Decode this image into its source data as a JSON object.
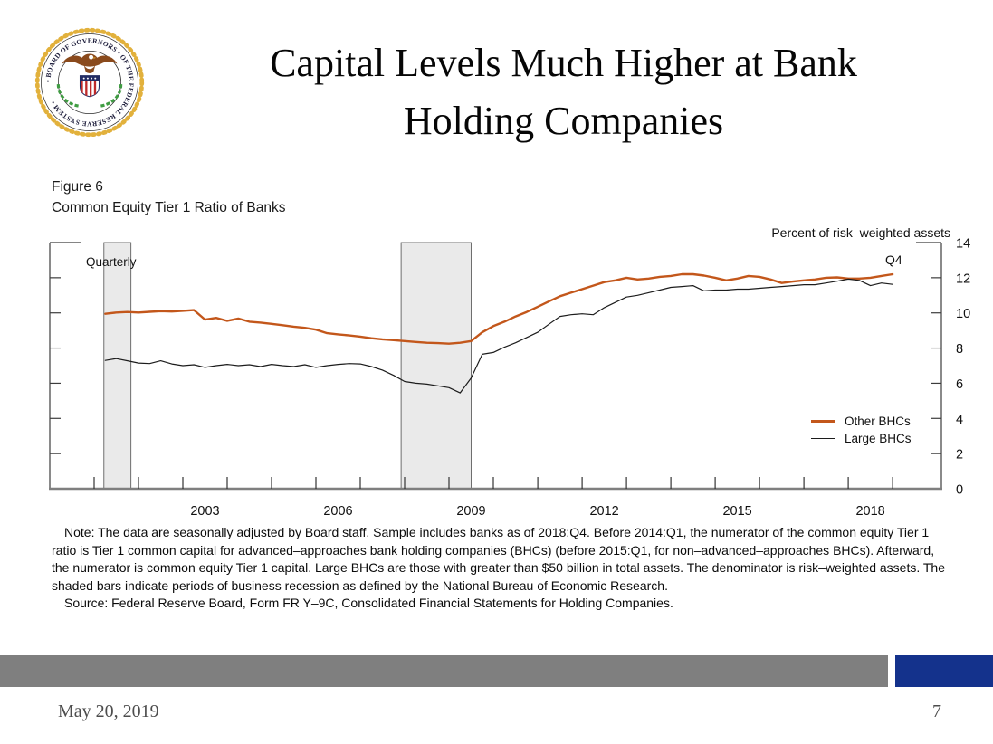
{
  "slide": {
    "title_line1": "Capital Levels Much Higher at Bank",
    "title_line2": "Holding Companies",
    "footer_date": "May 20, 2019",
    "page_number": "7"
  },
  "logo": {
    "ring_text": "• BOARD OF GOVERNORS • OF THE FEDERAL RESERVE SYSTEM •"
  },
  "figure": {
    "label": "Figure 6",
    "subtitle": "Common Equity Tier 1 Ratio of Banks",
    "note": "Note: The data are seasonally adjusted by Board staff. Sample includes banks as of 2018:Q4. Before 2014:Q1, the numerator of the common equity Tier 1 ratio is Tier 1 common capital for advanced–approaches bank holding companies (BHCs) (before 2015:Q1, for non–advanced–approaches BHCs). Afterward, the numerator is common equity Tier 1 capital. Large BHCs are those with greater than $50 billion in total assets. The denominator is risk–weighted assets. The shaded bars indicate periods of business recession as defined by the National Bureau of Economic Research.",
    "source": "Source: Federal Reserve Board, Form FR Y–9C, Consolidated Financial Statements for Holding Companies."
  },
  "chart_data": {
    "type": "line",
    "title": "Common Equity Tier 1 Ratio of Banks",
    "ylabel": "Percent of risk–weighted assets",
    "frequency_label": "Quarterly",
    "end_label": "Q4",
    "ylim": [
      0,
      14
    ],
    "yticks": [
      0,
      2,
      4,
      6,
      8,
      10,
      12,
      14
    ],
    "xlim": [
      2000,
      2020.1
    ],
    "xticks_years": [
      2001,
      2002,
      2003,
      2004,
      2005,
      2006,
      2007,
      2008,
      2009,
      2010,
      2011,
      2012,
      2013,
      2014,
      2015,
      2016,
      2017,
      2018,
      2019
    ],
    "xtick_labels": [
      2003,
      2006,
      2009,
      2012,
      2015,
      2018
    ],
    "grid": false,
    "legend_position": "right-middle",
    "x_start": 2001.25,
    "x_step": 0.25,
    "recessions": [
      [
        2001.22,
        2001.83
      ],
      [
        2007.92,
        2009.5
      ]
    ],
    "series": [
      {
        "name": "Other BHCs",
        "color": "#C3571B",
        "width": 2.4,
        "values": [
          9.95,
          10.02,
          10.05,
          10.02,
          10.06,
          10.1,
          10.08,
          10.12,
          10.16,
          9.62,
          9.72,
          9.55,
          9.68,
          9.5,
          9.45,
          9.38,
          9.3,
          9.22,
          9.15,
          9.05,
          8.85,
          8.78,
          8.72,
          8.65,
          8.56,
          8.5,
          8.45,
          8.4,
          8.35,
          8.3,
          8.28,
          8.25,
          8.3,
          8.4,
          8.9,
          9.25,
          9.5,
          9.8,
          10.05,
          10.35,
          10.65,
          10.95,
          11.15,
          11.35,
          11.55,
          11.75,
          11.85,
          12.0,
          11.9,
          11.95,
          12.05,
          12.1,
          12.2,
          12.2,
          12.12,
          12.0,
          11.85,
          11.95,
          12.1,
          12.05,
          11.9,
          11.7,
          11.78,
          11.85,
          11.9,
          12.0,
          12.02,
          11.95,
          11.95,
          12.0,
          12.1,
          12.2
        ]
      },
      {
        "name": "Large BHCs",
        "color": "#1c1c1c",
        "width": 1.2,
        "values": [
          7.3,
          7.4,
          7.28,
          7.15,
          7.12,
          7.28,
          7.1,
          7.0,
          7.05,
          6.9,
          7.0,
          7.07,
          7.0,
          7.05,
          6.95,
          7.07,
          7.0,
          6.95,
          7.05,
          6.9,
          7.0,
          7.07,
          7.12,
          7.1,
          6.95,
          6.75,
          6.45,
          6.1,
          6.0,
          5.95,
          5.85,
          5.75,
          5.45,
          6.3,
          7.65,
          7.75,
          8.05,
          8.3,
          8.6,
          8.9,
          9.35,
          9.8,
          9.9,
          9.95,
          9.9,
          10.3,
          10.6,
          10.9,
          11.0,
          11.15,
          11.3,
          11.45,
          11.5,
          11.55,
          11.25,
          11.3,
          11.3,
          11.35,
          11.35,
          11.4,
          11.45,
          11.5,
          11.55,
          11.6,
          11.6,
          11.7,
          11.8,
          11.92,
          11.85,
          11.55,
          11.7,
          11.62
        ]
      }
    ]
  },
  "colors": {
    "accent_orange": "#C3571B",
    "line_black": "#1c1c1c",
    "band_fill": "#EAEAEA",
    "band_edge": "#4d4d4d",
    "axis_side": "#3c3c3c",
    "axis_bottom": "#7f7f7f",
    "footer_gray": "#7F7F7F",
    "footer_blue": "#14328C",
    "seal_gold": "#E2B13C",
    "seal_brown": "#8a4a1c",
    "seal_red": "#bf2b2b",
    "seal_navy": "#232c63",
    "seal_green": "#3f9c42"
  }
}
